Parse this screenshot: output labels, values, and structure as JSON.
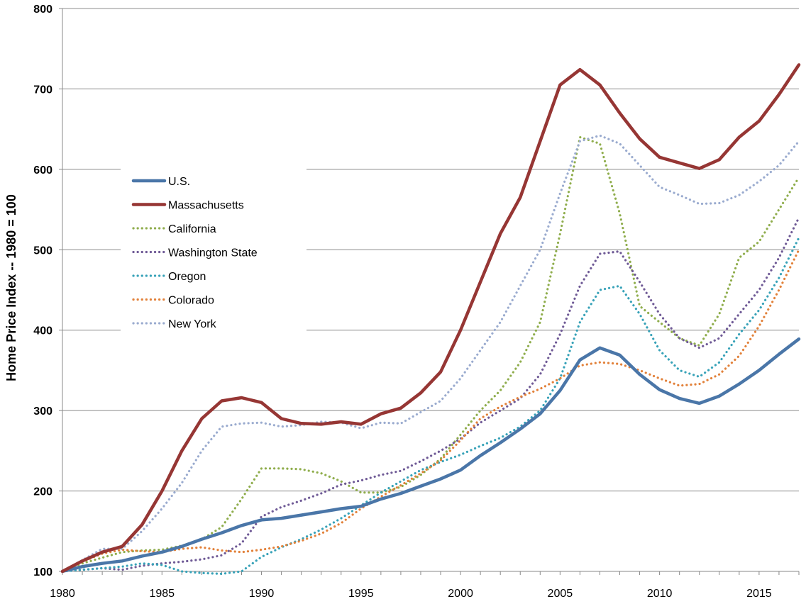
{
  "chart_data": {
    "type": "line",
    "title": "",
    "xlabel": "",
    "ylabel": "Home Price Index -- 1980 = 100",
    "xlim": [
      1980,
      2017
    ],
    "ylim": [
      100,
      800
    ],
    "x_ticks": [
      1980,
      1985,
      1990,
      1995,
      2000,
      2005,
      2010,
      2015
    ],
    "y_ticks": [
      100,
      200,
      300,
      400,
      500,
      600,
      700,
      800
    ],
    "grid": "horizontal",
    "legend_position": "upper-left inside plot",
    "series": [
      {
        "name": "U.S.",
        "color": "#4a76a8",
        "style": "solid",
        "points": [
          [
            1980,
            100
          ],
          [
            1981,
            106
          ],
          [
            1982,
            110
          ],
          [
            1983,
            113
          ],
          [
            1984,
            119
          ],
          [
            1985,
            124
          ],
          [
            1986,
            131
          ],
          [
            1987,
            140
          ],
          [
            1988,
            148
          ],
          [
            1989,
            157
          ],
          [
            1990,
            164
          ],
          [
            1991,
            166
          ],
          [
            1992,
            170
          ],
          [
            1993,
            174
          ],
          [
            1994,
            178
          ],
          [
            1995,
            181
          ],
          [
            1996,
            190
          ],
          [
            1997,
            197
          ],
          [
            1998,
            206
          ],
          [
            1999,
            215
          ],
          [
            2000,
            226
          ],
          [
            2001,
            244
          ],
          [
            2002,
            260
          ],
          [
            2003,
            277
          ],
          [
            2004,
            296
          ],
          [
            2005,
            325
          ],
          [
            2006,
            363
          ],
          [
            2007,
            378
          ],
          [
            2008,
            369
          ],
          [
            2009,
            345
          ],
          [
            2010,
            326
          ],
          [
            2011,
            315
          ],
          [
            2012,
            309
          ],
          [
            2013,
            318
          ],
          [
            2014,
            333
          ],
          [
            2015,
            350
          ],
          [
            2016,
            370
          ],
          [
            2017,
            389
          ]
        ]
      },
      {
        "name": "Massachusetts",
        "color": "#963634",
        "style": "solid",
        "points": [
          [
            1980,
            100
          ],
          [
            1981,
            113
          ],
          [
            1982,
            124
          ],
          [
            1983,
            131
          ],
          [
            1984,
            158
          ],
          [
            1985,
            200
          ],
          [
            1986,
            250
          ],
          [
            1987,
            290
          ],
          [
            1988,
            312
          ],
          [
            1989,
            316
          ],
          [
            1990,
            310
          ],
          [
            1991,
            290
          ],
          [
            1992,
            284
          ],
          [
            1993,
            283
          ],
          [
            1994,
            286
          ],
          [
            1995,
            283
          ],
          [
            1996,
            296
          ],
          [
            1997,
            303
          ],
          [
            1998,
            322
          ],
          [
            1999,
            348
          ],
          [
            2000,
            400
          ],
          [
            2001,
            460
          ],
          [
            2002,
            520
          ],
          [
            2003,
            565
          ],
          [
            2004,
            635
          ],
          [
            2005,
            705
          ],
          [
            2006,
            724
          ],
          [
            2007,
            705
          ],
          [
            2008,
            670
          ],
          [
            2009,
            638
          ],
          [
            2010,
            615
          ],
          [
            2011,
            608
          ],
          [
            2012,
            601
          ],
          [
            2013,
            612
          ],
          [
            2014,
            640
          ],
          [
            2015,
            660
          ],
          [
            2016,
            693
          ],
          [
            2017,
            730
          ]
        ]
      },
      {
        "name": "California",
        "color": "#8fad4c",
        "style": "dotted",
        "points": [
          [
            1980,
            100
          ],
          [
            1981,
            110
          ],
          [
            1982,
            117
          ],
          [
            1983,
            124
          ],
          [
            1984,
            126
          ],
          [
            1985,
            127
          ],
          [
            1986,
            132
          ],
          [
            1987,
            140
          ],
          [
            1988,
            155
          ],
          [
            1989,
            190
          ],
          [
            1990,
            228
          ],
          [
            1991,
            228
          ],
          [
            1992,
            227
          ],
          [
            1993,
            222
          ],
          [
            1994,
            212
          ],
          [
            1995,
            198
          ],
          [
            1996,
            198
          ],
          [
            1997,
            205
          ],
          [
            1998,
            220
          ],
          [
            1999,
            240
          ],
          [
            2000,
            270
          ],
          [
            2001,
            300
          ],
          [
            2002,
            325
          ],
          [
            2003,
            360
          ],
          [
            2004,
            410
          ],
          [
            2005,
            520
          ],
          [
            2006,
            640
          ],
          [
            2007,
            632
          ],
          [
            2008,
            545
          ],
          [
            2009,
            430
          ],
          [
            2010,
            410
          ],
          [
            2011,
            390
          ],
          [
            2012,
            381
          ],
          [
            2013,
            420
          ],
          [
            2014,
            490
          ],
          [
            2015,
            510
          ],
          [
            2016,
            550
          ],
          [
            2017,
            590
          ]
        ]
      },
      {
        "name": "Washington State",
        "color": "#6f5a96",
        "style": "dotted",
        "points": [
          [
            1980,
            100
          ],
          [
            1981,
            102
          ],
          [
            1982,
            104
          ],
          [
            1983,
            102
          ],
          [
            1984,
            107
          ],
          [
            1985,
            110
          ],
          [
            1986,
            112
          ],
          [
            1987,
            115
          ],
          [
            1988,
            120
          ],
          [
            1989,
            135
          ],
          [
            1990,
            168
          ],
          [
            1991,
            180
          ],
          [
            1992,
            188
          ],
          [
            1993,
            197
          ],
          [
            1994,
            208
          ],
          [
            1995,
            213
          ],
          [
            1996,
            220
          ],
          [
            1997,
            225
          ],
          [
            1998,
            237
          ],
          [
            1999,
            250
          ],
          [
            2000,
            265
          ],
          [
            2001,
            285
          ],
          [
            2002,
            300
          ],
          [
            2003,
            315
          ],
          [
            2004,
            345
          ],
          [
            2005,
            395
          ],
          [
            2006,
            455
          ],
          [
            2007,
            495
          ],
          [
            2008,
            498
          ],
          [
            2009,
            460
          ],
          [
            2010,
            420
          ],
          [
            2011,
            390
          ],
          [
            2012,
            378
          ],
          [
            2013,
            390
          ],
          [
            2014,
            420
          ],
          [
            2015,
            450
          ],
          [
            2016,
            490
          ],
          [
            2017,
            540
          ]
        ]
      },
      {
        "name": "Oregon",
        "color": "#37a2b8",
        "style": "dotted",
        "points": [
          [
            1980,
            100
          ],
          [
            1981,
            102
          ],
          [
            1982,
            104
          ],
          [
            1983,
            106
          ],
          [
            1984,
            110
          ],
          [
            1985,
            108
          ],
          [
            1986,
            100
          ],
          [
            1987,
            98
          ],
          [
            1988,
            97
          ],
          [
            1989,
            100
          ],
          [
            1990,
            118
          ],
          [
            1991,
            130
          ],
          [
            1992,
            140
          ],
          [
            1993,
            152
          ],
          [
            1994,
            166
          ],
          [
            1995,
            182
          ],
          [
            1996,
            198
          ],
          [
            1997,
            212
          ],
          [
            1998,
            226
          ],
          [
            1999,
            236
          ],
          [
            2000,
            245
          ],
          [
            2001,
            256
          ],
          [
            2002,
            266
          ],
          [
            2003,
            280
          ],
          [
            2004,
            300
          ],
          [
            2005,
            340
          ],
          [
            2006,
            410
          ],
          [
            2007,
            450
          ],
          [
            2008,
            455
          ],
          [
            2009,
            420
          ],
          [
            2010,
            375
          ],
          [
            2011,
            350
          ],
          [
            2012,
            342
          ],
          [
            2013,
            360
          ],
          [
            2014,
            395
          ],
          [
            2015,
            425
          ],
          [
            2016,
            465
          ],
          [
            2017,
            515
          ]
        ]
      },
      {
        "name": "Colorado",
        "color": "#e2813a",
        "style": "dotted",
        "points": [
          [
            1980,
            100
          ],
          [
            1981,
            112
          ],
          [
            1982,
            122
          ],
          [
            1983,
            127
          ],
          [
            1984,
            125
          ],
          [
            1985,
            124
          ],
          [
            1986,
            128
          ],
          [
            1987,
            130
          ],
          [
            1988,
            126
          ],
          [
            1989,
            124
          ],
          [
            1990,
            127
          ],
          [
            1991,
            131
          ],
          [
            1992,
            138
          ],
          [
            1993,
            147
          ],
          [
            1994,
            160
          ],
          [
            1995,
            178
          ],
          [
            1996,
            193
          ],
          [
            1997,
            207
          ],
          [
            1998,
            222
          ],
          [
            1999,
            238
          ],
          [
            2000,
            263
          ],
          [
            2001,
            290
          ],
          [
            2002,
            305
          ],
          [
            2003,
            317
          ],
          [
            2004,
            327
          ],
          [
            2005,
            340
          ],
          [
            2006,
            356
          ],
          [
            2007,
            360
          ],
          [
            2008,
            358
          ],
          [
            2009,
            350
          ],
          [
            2010,
            340
          ],
          [
            2011,
            331
          ],
          [
            2012,
            333
          ],
          [
            2013,
            345
          ],
          [
            2014,
            368
          ],
          [
            2015,
            405
          ],
          [
            2016,
            450
          ],
          [
            2017,
            500
          ]
        ]
      },
      {
        "name": "New York",
        "color": "#9aabcf",
        "style": "dotted",
        "points": [
          [
            1980,
            100
          ],
          [
            1981,
            114
          ],
          [
            1982,
            128
          ],
          [
            1983,
            128
          ],
          [
            1984,
            150
          ],
          [
            1985,
            178
          ],
          [
            1986,
            210
          ],
          [
            1987,
            250
          ],
          [
            1988,
            280
          ],
          [
            1989,
            284
          ],
          [
            1990,
            285
          ],
          [
            1991,
            280
          ],
          [
            1992,
            282
          ],
          [
            1993,
            286
          ],
          [
            1994,
            285
          ],
          [
            1995,
            278
          ],
          [
            1996,
            285
          ],
          [
            1997,
            284
          ],
          [
            1998,
            298
          ],
          [
            1999,
            312
          ],
          [
            2000,
            340
          ],
          [
            2001,
            375
          ],
          [
            2002,
            410
          ],
          [
            2003,
            455
          ],
          [
            2004,
            500
          ],
          [
            2005,
            570
          ],
          [
            2006,
            635
          ],
          [
            2007,
            642
          ],
          [
            2008,
            632
          ],
          [
            2009,
            605
          ],
          [
            2010,
            578
          ],
          [
            2011,
            568
          ],
          [
            2012,
            557
          ],
          [
            2013,
            558
          ],
          [
            2014,
            568
          ],
          [
            2015,
            585
          ],
          [
            2016,
            605
          ],
          [
            2017,
            635
          ]
        ]
      }
    ]
  }
}
